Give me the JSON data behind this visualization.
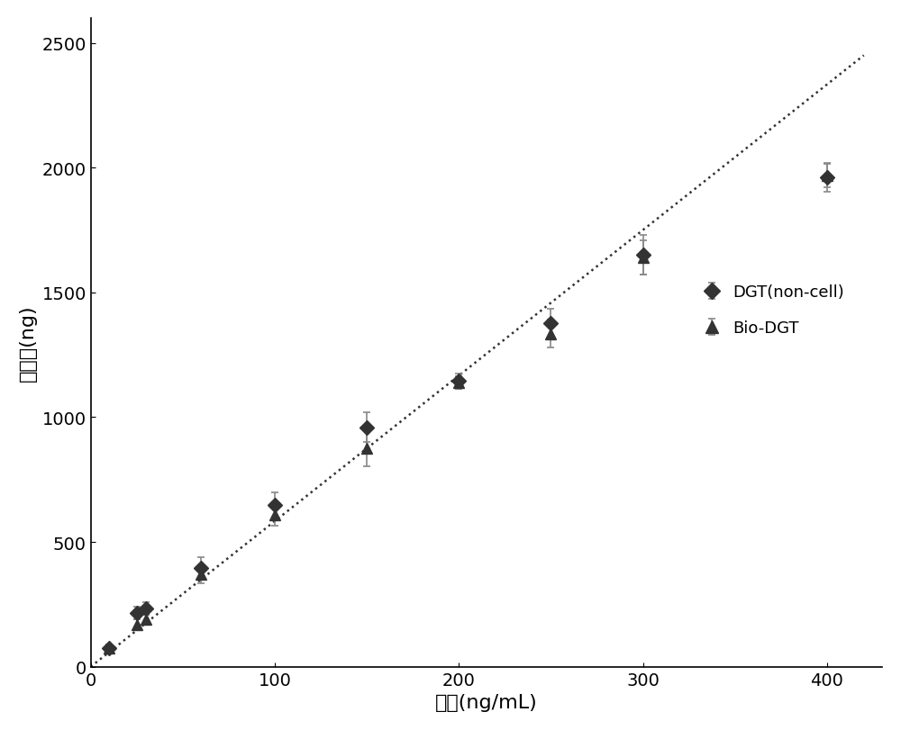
{
  "xlabel": "浓度(ng/mL)",
  "ylabel": "吸附量(ng)",
  "xlim": [
    0,
    430
  ],
  "ylim": [
    0,
    2600
  ],
  "xticks": [
    0,
    100,
    200,
    300,
    400
  ],
  "yticks": [
    0,
    500,
    1000,
    1500,
    2000,
    2500
  ],
  "dgt_x": [
    10,
    25,
    30,
    60,
    100,
    150,
    200,
    250,
    300,
    400
  ],
  "dgt_y": [
    75,
    215,
    235,
    395,
    650,
    960,
    1145,
    1375,
    1650,
    1960
  ],
  "dgt_yerr": [
    15,
    25,
    25,
    45,
    50,
    60,
    30,
    60,
    80,
    55
  ],
  "biodgt_x": [
    10,
    25,
    30,
    60,
    100,
    150,
    200,
    250,
    300,
    400
  ],
  "biodgt_y": [
    75,
    170,
    190,
    370,
    610,
    875,
    1140,
    1335,
    1640,
    1970
  ],
  "biodgt_yerr": [
    15,
    20,
    20,
    35,
    45,
    70,
    25,
    55,
    70,
    50
  ],
  "fit_x": [
    0,
    420
  ],
  "fit_y": [
    0,
    2450
  ],
  "marker_color_dgt": "#333333",
  "marker_color_biodgt": "#333333",
  "errorbar_color": "#888888",
  "line_color": "#333333",
  "background_color": "#ffffff",
  "legend_dgt": "DGT(non-cell)",
  "legend_biodgt": "Bio-DGT",
  "xlabel_fontsize": 16,
  "ylabel_fontsize": 16,
  "tick_fontsize": 14,
  "legend_fontsize": 13
}
